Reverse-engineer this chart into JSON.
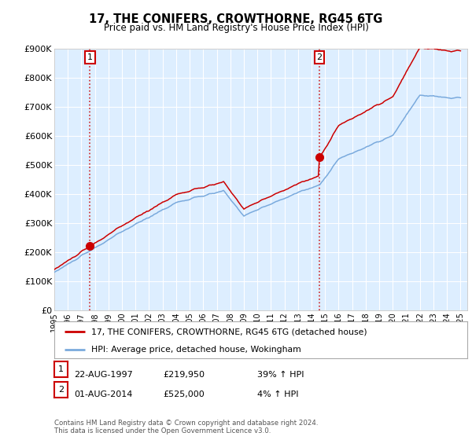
{
  "title": "17, THE CONIFERS, CROWTHORNE, RG45 6TG",
  "subtitle": "Price paid vs. HM Land Registry's House Price Index (HPI)",
  "ylabel_values": [
    "£0",
    "£100K",
    "£200K",
    "£300K",
    "£400K",
    "£500K",
    "£600K",
    "£700K",
    "£800K",
    "£900K"
  ],
  "ylim": [
    0,
    900000
  ],
  "yticks": [
    0,
    100000,
    200000,
    300000,
    400000,
    500000,
    600000,
    700000,
    800000,
    900000
  ],
  "sale1_date": 1997.64,
  "sale1_price": 219950,
  "sale1_label": "1",
  "sale2_date": 2014.58,
  "sale2_price": 525000,
  "sale2_label": "2",
  "legend_line1": "17, THE CONIFERS, CROWTHORNE, RG45 6TG (detached house)",
  "legend_line2": "HPI: Average price, detached house, Wokingham",
  "table_row1": [
    "1",
    "22-AUG-1997",
    "£219,950",
    "39% ↑ HPI"
  ],
  "table_row2": [
    "2",
    "01-AUG-2014",
    "£525,000",
    "4% ↑ HPI"
  ],
  "footnote": "Contains HM Land Registry data © Crown copyright and database right 2024.\nThis data is licensed under the Open Government Licence v3.0.",
  "red_color": "#cc0000",
  "blue_color": "#7aaadd",
  "bg_color": "#ddeeff",
  "plot_bg": "#ffffff",
  "grid_color": "#ffffff",
  "xlim_left": 1995,
  "xlim_right": 2025.5
}
